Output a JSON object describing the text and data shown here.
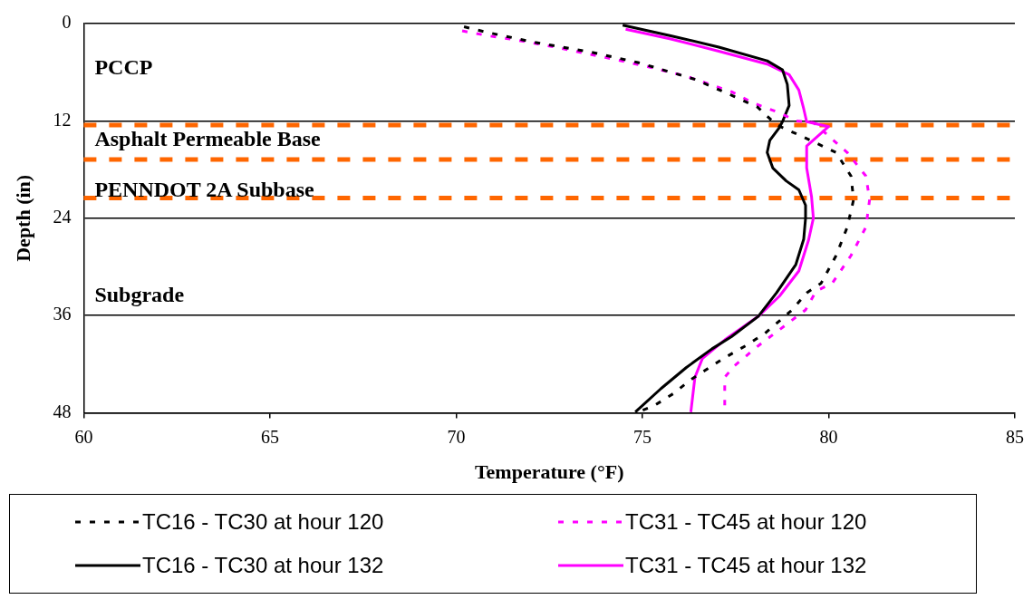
{
  "chart_data": {
    "type": "line",
    "xlabel": "Temperature (°F)",
    "ylabel": "Depth (in)",
    "xlim": [
      60,
      85
    ],
    "xticks": [
      60,
      65,
      70,
      75,
      80,
      85
    ],
    "ylim": [
      48,
      0
    ],
    "yticks": [
      0,
      12,
      24,
      36,
      48
    ],
    "grid": "y",
    "legend": "bottom",
    "marker": "none",
    "series": [
      {
        "name": "TC16 - TC30 at hour 120",
        "color": "#000000",
        "line_style": "dashed",
        "x": [
          70.21,
          70.85,
          72.09,
          73.7,
          74.88,
          76.43,
          77.47,
          78.09,
          78.6,
          79.33,
          80.2,
          80.6,
          80.67,
          80.5,
          80.2,
          79.8,
          79.41,
          79.02,
          78.29,
          77.78,
          77.21,
          76.87,
          76.3,
          75.84,
          75.32,
          74.88
        ],
        "values": [
          0.4,
          1.1,
          2.3,
          3.6,
          4.8,
          6.9,
          9.0,
          10.3,
          12.5,
          14,
          15.9,
          18.8,
          21.7,
          25.1,
          28.6,
          32,
          33.2,
          35.3,
          38.2,
          39.7,
          41.2,
          42.2,
          43.9,
          45.6,
          47.1,
          47.9
        ]
      },
      {
        "name": "TC31 - TC45 at hour 120",
        "color": "#ff00ff",
        "line_style": "dashed",
        "x": [
          70.16,
          70.85,
          71.45,
          72.66,
          74.03,
          75.14,
          76.18,
          77.39,
          77.98,
          78.68,
          79.12,
          79.59,
          80.5,
          81.0,
          81.1,
          81.0,
          80.6,
          80.1,
          79.66,
          79.38,
          78.55,
          78.09,
          77.47,
          77.21,
          77.21
        ],
        "values": [
          0.9,
          1.5,
          1.9,
          2.9,
          4.2,
          5.3,
          6.5,
          8.4,
          9.8,
          11.0,
          12,
          12.2,
          15.9,
          18.8,
          21.7,
          25.1,
          28.6,
          32,
          33,
          35.3,
          38.2,
          39.8,
          42.2,
          43.6,
          48
        ]
      },
      {
        "name": "TC16 - TC30 at hour 132",
        "color": "#000000",
        "line_style": "solid",
        "x": [
          74.47,
          75.76,
          77.05,
          78.35,
          78.76,
          78.89,
          78.94,
          78.76,
          78.68,
          78.42,
          78.35,
          78.5,
          78.86,
          79.2,
          79.38,
          79.38,
          79.33,
          79.12,
          78.6,
          78.11,
          77.39,
          76.87,
          76.18,
          75.5,
          74.81
        ],
        "values": [
          0.2,
          1.5,
          2.9,
          4.6,
          5.7,
          7.5,
          10.1,
          12.1,
          12.8,
          14.4,
          15.9,
          17.8,
          19.4,
          20.5,
          22.4,
          24,
          26.6,
          29.7,
          33.2,
          36.1,
          38.6,
          40.1,
          42.4,
          45,
          47.9
        ]
      },
      {
        "name": "TC31 - TC45 at hour 132",
        "color": "#ff00ff",
        "line_style": "solid",
        "x": [
          74.55,
          75.76,
          77.05,
          78.35,
          78.94,
          79.2,
          79.33,
          79.41,
          80.0,
          79.41,
          79.41,
          79.54,
          79.59,
          79.46,
          79.2,
          78.68,
          78.11,
          77.21,
          76.61,
          76.41,
          76.3
        ],
        "values": [
          0.7,
          1.9,
          3.4,
          5.0,
          6.3,
          8.2,
          10.5,
          12.1,
          12.7,
          15.1,
          17.8,
          21.3,
          24,
          26.7,
          30.5,
          33.6,
          36.1,
          39,
          41.3,
          43.6,
          47.9
        ]
      }
    ],
    "ref_lines": [
      {
        "axis": "y",
        "value": 12.5,
        "color": "#ff6600",
        "line_style": "dashed"
      },
      {
        "axis": "y",
        "value": 16.75,
        "color": "#ff6600",
        "line_style": "dashed"
      },
      {
        "axis": "y",
        "value": 21.5,
        "color": "#ff6600",
        "line_style": "dashed"
      }
    ],
    "annotations": [
      "PCCP",
      "Asphalt Permeable Base",
      "PENNDOT 2A Subbase",
      "Subgrade"
    ]
  }
}
